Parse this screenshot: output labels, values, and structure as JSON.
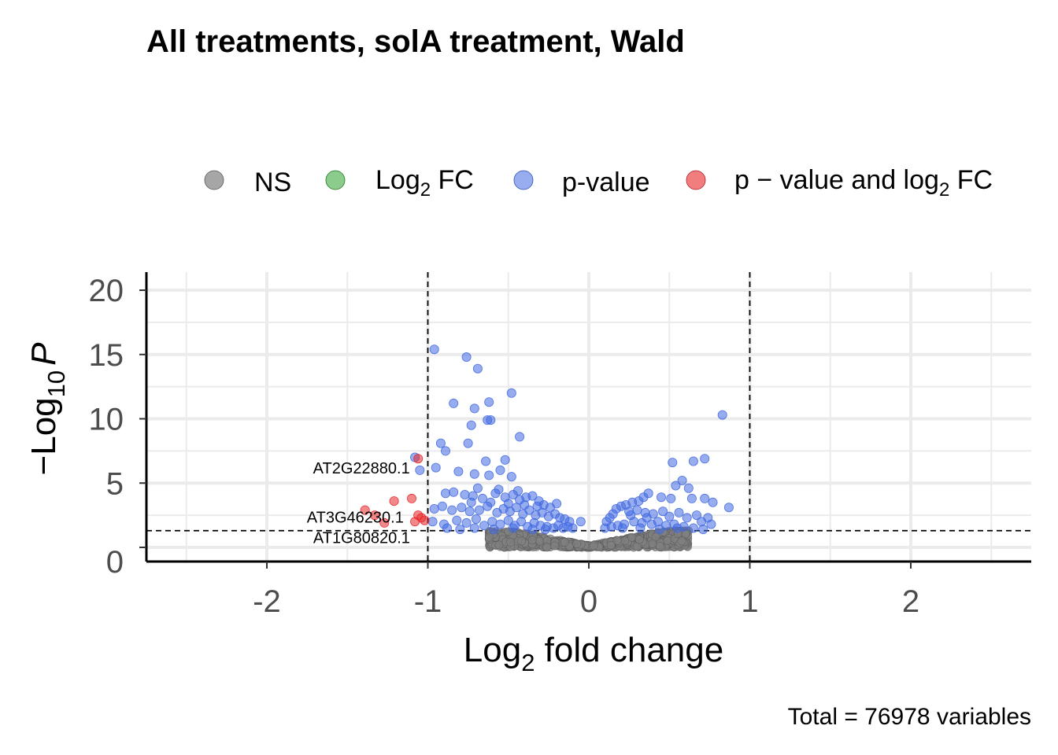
{
  "chart_data": {
    "type": "scatter",
    "title": "All treatments, solA treatment, Wald",
    "xlabel_base": "Log",
    "xlabel_sub": "2",
    "xlabel_rest": " fold change",
    "ylabel_prefix": "−Log",
    "ylabel_sub": "10",
    "ylabel_var": "P",
    "caption": "Total = 76978 variables",
    "xlim": [
      -2.7,
      2.75
    ],
    "ylim": [
      -0.5,
      21.5
    ],
    "x_ticks": [
      -2,
      -1,
      0,
      1,
      2
    ],
    "x_tick_labels": [
      "-2",
      "-1",
      "0",
      "1",
      "2"
    ],
    "y_ticks": [
      0,
      5,
      10,
      15,
      20
    ],
    "y_tick_labels": [
      "0",
      "5",
      "10",
      "15",
      "20"
    ],
    "fc_cutoff": 1,
    "p_cutoff_log10": 1.3,
    "grid": true,
    "legend_position": "top",
    "legend": [
      {
        "key": "ns",
        "label": "NS",
        "color": "#808080"
      },
      {
        "key": "fc",
        "label_base": "Log",
        "label_sub": "2",
        "label_rest": " FC",
        "color": "#2ca02c"
      },
      {
        "key": "p",
        "label": "p-value",
        "color": "#4169e1"
      },
      {
        "key": "both",
        "label_base": "p − value and log",
        "label_sub": "2",
        "label_rest": " FC",
        "color": "#e8262a"
      }
    ],
    "series": [
      {
        "name": "p-value",
        "points": [
          [
            -0.96,
            15.4
          ],
          [
            -0.76,
            14.8
          ],
          [
            -0.69,
            13.9
          ],
          [
            -0.48,
            12.0
          ],
          [
            -0.84,
            11.2
          ],
          [
            -0.71,
            10.8
          ],
          [
            -0.62,
            11.3
          ],
          [
            -0.63,
            9.9
          ],
          [
            -0.61,
            9.9
          ],
          [
            -0.73,
            9.5
          ],
          [
            -0.43,
            8.6
          ],
          [
            -0.92,
            8.1
          ],
          [
            -0.89,
            7.5
          ],
          [
            -0.75,
            8.1
          ],
          [
            -1.08,
            7.0
          ],
          [
            -0.64,
            6.7
          ],
          [
            -0.52,
            6.8
          ],
          [
            -0.95,
            6.2
          ],
          [
            -1.05,
            6.0
          ],
          [
            -0.81,
            5.9
          ],
          [
            -0.55,
            6.0
          ],
          [
            -0.71,
            5.7
          ],
          [
            -0.62,
            5.6
          ],
          [
            -0.48,
            5.5
          ],
          [
            -0.89,
            4.2
          ],
          [
            -0.84,
            4.3
          ],
          [
            -0.77,
            4.1
          ],
          [
            -0.72,
            4.0
          ],
          [
            -0.66,
            3.8
          ],
          [
            -0.58,
            4.2
          ],
          [
            -0.52,
            3.9
          ],
          [
            -0.47,
            4.1
          ],
          [
            -0.43,
            3.7
          ],
          [
            -0.39,
            3.9
          ],
          [
            -0.35,
            4.0
          ],
          [
            -0.31,
            3.6
          ],
          [
            -0.28,
            3.3
          ],
          [
            -0.24,
            3.1
          ],
          [
            -0.2,
            3.4
          ],
          [
            -0.96,
            3.0
          ],
          [
            -0.91,
            3.2
          ],
          [
            -0.85,
            2.9
          ],
          [
            -0.79,
            3.1
          ],
          [
            -0.74,
            2.8
          ],
          [
            -0.68,
            2.9
          ],
          [
            -0.63,
            3.2
          ],
          [
            -0.57,
            2.7
          ],
          [
            -0.53,
            3.0
          ],
          [
            -0.49,
            2.8
          ],
          [
            -0.45,
            3.1
          ],
          [
            -0.41,
            2.6
          ],
          [
            -0.37,
            2.9
          ],
          [
            -0.33,
            2.5
          ],
          [
            -0.29,
            2.7
          ],
          [
            -0.25,
            2.4
          ],
          [
            -0.21,
            2.6
          ],
          [
            -0.18,
            2.3
          ],
          [
            -0.15,
            2.2
          ],
          [
            -0.12,
            2.0
          ],
          [
            -0.97,
            2.0
          ],
          [
            -0.9,
            1.8
          ],
          [
            -0.82,
            2.1
          ],
          [
            -0.76,
            1.9
          ],
          [
            -0.7,
            2.2
          ],
          [
            -0.65,
            1.7
          ],
          [
            -0.6,
            2.0
          ],
          [
            -0.55,
            1.8
          ],
          [
            -0.5,
            2.1
          ],
          [
            -0.46,
            1.7
          ],
          [
            -0.42,
            2.0
          ],
          [
            -0.38,
            1.6
          ],
          [
            -0.34,
            1.9
          ],
          [
            -0.3,
            1.7
          ],
          [
            -0.26,
            1.6
          ],
          [
            -0.22,
            1.5
          ],
          [
            -0.19,
            1.7
          ],
          [
            -0.16,
            1.5
          ],
          [
            -0.13,
            1.6
          ],
          [
            -0.1,
            1.5
          ],
          [
            -0.05,
            2.0
          ],
          [
            -0.88,
            1.5
          ],
          [
            -0.8,
            1.4
          ],
          [
            -0.71,
            1.5
          ],
          [
            -0.59,
            1.4
          ],
          [
            -0.47,
            1.5
          ],
          [
            -0.35,
            1.4
          ],
          [
            -0.27,
            1.4
          ],
          [
            -0.73,
            3.5
          ],
          [
            -0.61,
            3.5
          ],
          [
            -0.5,
            3.4
          ],
          [
            -0.4,
            3.3
          ],
          [
            -0.32,
            3.2
          ],
          [
            -0.44,
            4.4
          ],
          [
            -0.56,
            4.5
          ],
          [
            -0.69,
            4.6
          ],
          [
            0.83,
            10.3
          ],
          [
            0.72,
            6.9
          ],
          [
            0.65,
            6.7
          ],
          [
            0.52,
            6.6
          ],
          [
            0.58,
            5.2
          ],
          [
            0.54,
            4.8
          ],
          [
            0.62,
            4.6
          ],
          [
            0.87,
            3.1
          ],
          [
            0.77,
            3.5
          ],
          [
            0.72,
            3.8
          ],
          [
            0.64,
            3.8
          ],
          [
            0.51,
            3.8
          ],
          [
            0.45,
            3.9
          ],
          [
            0.37,
            4.2
          ],
          [
            0.34,
            3.9
          ],
          [
            0.31,
            3.6
          ],
          [
            0.27,
            3.5
          ],
          [
            0.23,
            3.3
          ],
          [
            0.2,
            3.2
          ],
          [
            0.17,
            3.0
          ],
          [
            0.15,
            2.6
          ],
          [
            0.13,
            2.3
          ],
          [
            0.11,
            2.0
          ],
          [
            0.25,
            2.8
          ],
          [
            0.3,
            2.9
          ],
          [
            0.35,
            2.7
          ],
          [
            0.4,
            2.6
          ],
          [
            0.46,
            2.8
          ],
          [
            0.5,
            2.4
          ],
          [
            0.56,
            2.7
          ],
          [
            0.61,
            2.3
          ],
          [
            0.67,
            2.5
          ],
          [
            0.7,
            2.0
          ],
          [
            0.74,
            2.3
          ],
          [
            0.76,
            1.8
          ],
          [
            0.59,
            1.6
          ],
          [
            0.53,
            1.8
          ],
          [
            0.48,
            1.7
          ],
          [
            0.43,
            2.0
          ],
          [
            0.39,
            1.8
          ],
          [
            0.33,
            1.9
          ],
          [
            0.28,
            2.0
          ],
          [
            0.22,
            1.8
          ],
          [
            0.18,
            1.7
          ],
          [
            0.14,
            1.6
          ],
          [
            0.1,
            1.5
          ],
          [
            0.21,
            1.5
          ],
          [
            0.32,
            1.5
          ],
          [
            0.44,
            1.4
          ],
          [
            0.55,
            1.5
          ],
          [
            0.65,
            1.5
          ],
          [
            0.71,
            1.4
          ],
          [
            0.36,
            2.3
          ],
          [
            0.26,
            2.5
          ]
        ]
      },
      {
        "name": "p − value and log2 FC",
        "points": [
          [
            -1.06,
            6.9
          ],
          [
            -1.39,
            2.9
          ],
          [
            -1.33,
            2.5
          ],
          [
            -1.21,
            3.6
          ],
          [
            -1.1,
            3.8
          ],
          [
            -1.27,
            1.9
          ],
          [
            -1.08,
            2.0
          ],
          [
            -1.04,
            2.3
          ],
          [
            -1.02,
            2.1
          ],
          [
            -1.06,
            2.5
          ]
        ]
      }
    ],
    "labels": [
      {
        "text": "AT2G22880.1",
        "x": -1.06,
        "y": 6.9
      },
      {
        "text": "AT3G46230.1",
        "x": -1.04,
        "y": 2.3
      },
      {
        "text": "AT1G80820.1",
        "x": -1.02,
        "y": 2.1
      }
    ]
  }
}
